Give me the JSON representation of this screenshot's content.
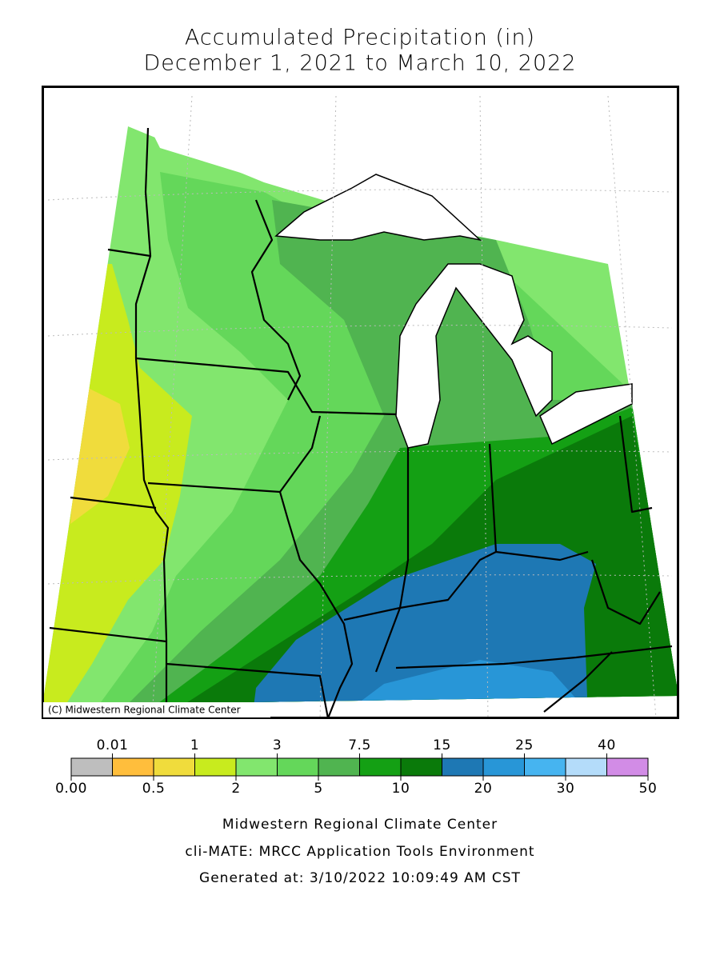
{
  "header": {
    "title_lines": [
      "Accumulated Precipitation (in)",
      "December 1, 2021 to March 10, 2022"
    ]
  },
  "map": {
    "credit": "(C) Midwestern Regional Climate Center"
  },
  "legend": {
    "bins": [
      {
        "value": 0,
        "label": "0.00"
      },
      0.01,
      0.5,
      1,
      2,
      3,
      5,
      7.5,
      10,
      15,
      20,
      25,
      30,
      40,
      50
    ],
    "colors": [
      "#bebebe",
      "#ffbe3c",
      "#f0dc3c",
      "#c8eb1e",
      "#82e66e",
      "#64d75a",
      "#50b450",
      "#14a014",
      "#0a7a0a",
      "#1e78b4",
      "#2896d7",
      "#46b4f0",
      "#b4dcfa",
      "#d28ce6"
    ]
  },
  "footer": {
    "lines": [
      "Midwestern Regional Climate Center",
      "cli-MATE: MRCC Application Tools Environment",
      "Generated at: 3/10/2022 10:09:49 AM CST"
    ]
  }
}
